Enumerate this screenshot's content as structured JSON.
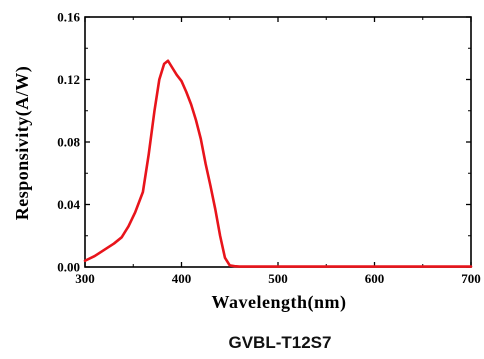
{
  "chart_data": {
    "type": "line",
    "title": "",
    "caption": "GVBL-T12S7",
    "xlabel": "Wavelength(nm)",
    "ylabel": "Responsivity(A/W)",
    "xlim": [
      300,
      700
    ],
    "ylim": [
      0,
      0.16
    ],
    "x_ticks": [
      300,
      400,
      500,
      600,
      700
    ],
    "y_ticks": [
      0.0,
      0.04,
      0.08,
      0.12,
      0.16
    ],
    "x_tick_labels": [
      "300",
      "400",
      "500",
      "600",
      "700"
    ],
    "y_tick_labels": [
      "0.00",
      "0.04",
      "0.08",
      "0.12",
      "0.16"
    ],
    "grid": false,
    "line_color": "#e8141b",
    "series": [
      {
        "x": [
          300,
          310,
          320,
          330,
          338,
          345,
          352,
          360,
          366,
          372,
          377,
          382,
          386,
          390,
          395,
          400,
          405,
          410,
          415,
          420,
          425,
          430,
          435,
          440,
          445,
          450,
          455,
          460,
          480,
          500,
          550,
          600,
          650,
          700
        ],
        "y": [
          0.004,
          0.007,
          0.011,
          0.015,
          0.019,
          0.026,
          0.035,
          0.048,
          0.072,
          0.1,
          0.12,
          0.13,
          0.132,
          0.128,
          0.123,
          0.119,
          0.112,
          0.104,
          0.094,
          0.082,
          0.066,
          0.052,
          0.037,
          0.02,
          0.006,
          0.001,
          0.0005,
          0.0003,
          0.0003,
          0.0003,
          0.0003,
          0.0003,
          0.0003,
          0.0003
        ]
      }
    ]
  }
}
